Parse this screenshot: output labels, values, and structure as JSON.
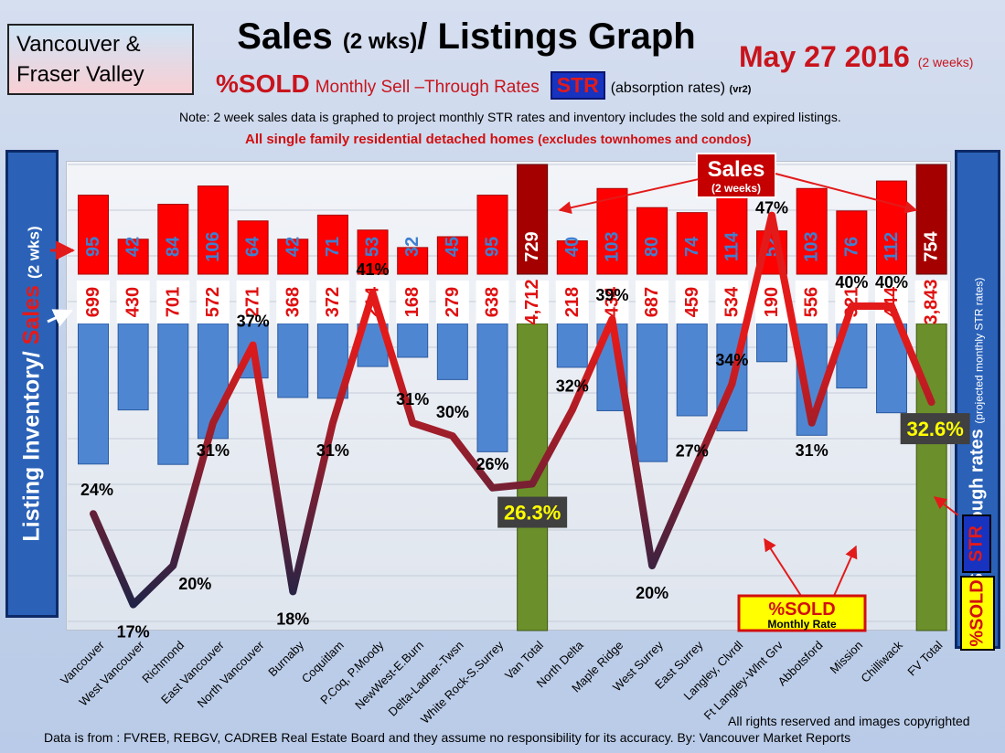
{
  "header": {
    "region_line1": "Vancouver &",
    "region_line2": "Fraser Valley",
    "title_main": "Sales ",
    "title_small": "(2 wks)",
    "title_end": "/ Listings Graph",
    "date": "May 27 2016",
    "date_note": "(2 weeks)",
    "sold_label": "%SOLD",
    "sold_rest": "Monthly Sell –Through Rates",
    "str_badge": "STR",
    "absorption": "(absorption rates)",
    "version": "(vr2)",
    "note": "Note: 2 week sales data is graphed to project monthly STR rates and inventory includes the sold and expired listings.",
    "scope": "All single family residential detached homes",
    "scope_small": "(excludes townhomes and condos)"
  },
  "left_axis": {
    "inventory": "Listing Inventory/",
    "sales": "Sales",
    "period": "(2 wks)"
  },
  "right_axis": {
    "label": "Sell-through rates",
    "note": "(projected monthly STR rates)",
    "str_tag": "STR",
    "pct_tag": "%SOLD"
  },
  "callouts": {
    "sales_title": "Sales",
    "sales_sub": "(2 weeks)",
    "sold_box_title": "%SOLD",
    "sold_box_sub": "Monthly Rate"
  },
  "chart_data": {
    "type": "bar",
    "categories": [
      "Vancouver",
      "West Vancouver",
      "Richmond",
      "East Vancouver",
      "North Vancouver",
      "Burnaby",
      "Coquitlam",
      "P.Coq, P.Moody",
      "NewWest-E.Burn",
      "Delta-Ladner-Twsn",
      "White Rock-S.Surrey",
      "Van Total",
      "North Delta",
      "Maple Ridge",
      "West Surrey",
      "East Surrey",
      "Langley, Clvrdl",
      "Ft Langley-Wlnt Grv",
      "Abbotsford",
      "Mission",
      "Chilliwack",
      "FV Total"
    ],
    "series": [
      {
        "name": "Sales",
        "values": [
          95,
          42,
          84,
          106,
          64,
          42,
          71,
          53,
          32,
          45,
          95,
          729,
          40,
          103,
          80,
          74,
          114,
          52,
          103,
          76,
          112,
          754
        ]
      },
      {
        "name": "Listing Inventory",
        "values": [
          699,
          430,
          701,
          572,
          271,
          368,
          372,
          214,
          168,
          279,
          638,
          4712,
          218,
          434,
          687,
          459,
          534,
          190,
          556,
          321,
          444,
          3843
        ]
      },
      {
        "name": "%SOLD",
        "values": [
          24,
          17,
          20,
          31,
          37,
          18,
          31,
          41,
          31,
          30,
          26,
          26.3,
          32,
          39,
          20,
          27,
          34,
          47,
          31,
          40,
          40,
          32.6
        ]
      }
    ],
    "inventory_labels": [
      "699",
      "430",
      "701",
      "572",
      "271",
      "368",
      "372",
      "214",
      "168",
      "279",
      "638",
      "4,712",
      "218",
      "434",
      "687",
      "459",
      "534",
      "190",
      "556",
      "321",
      "444",
      "3,843"
    ],
    "pct_labels": [
      "24%",
      "17%",
      "20%",
      "31%",
      "37%",
      "18%",
      "31%",
      "41%",
      "31%",
      "30%",
      "26%",
      "26.3%",
      "32%",
      "39%",
      "20%",
      "27%",
      "34%",
      "47%",
      "31%",
      "40%",
      "40%",
      "32.6%"
    ],
    "totals_highlight": [
      "Van Total",
      "FV Total"
    ],
    "colors": {
      "sales": "#ff0000",
      "inventory": "#4f86d2",
      "total_sales": "#a50000",
      "total_bar": "#6b8f2a",
      "line_top": "#e31a1a",
      "line_bottom": "#1c2448"
    }
  },
  "footer": {
    "rights": "All rights reserved and  images copyrighted",
    "source": "Data is from : FVREB, REBGV, CADREB Real Estate Board and they assume no responsibility  for its accuracy. By: Vancouver Market Reports"
  }
}
